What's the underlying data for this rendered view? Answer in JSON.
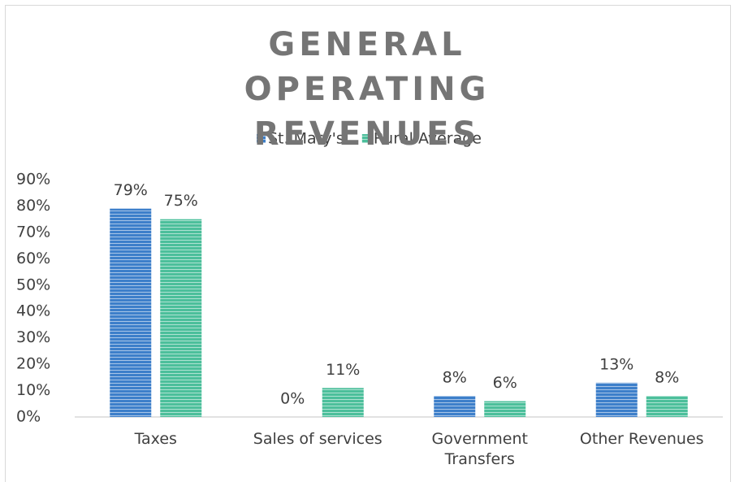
{
  "chart_data": {
    "type": "bar",
    "title": "GENERAL OPERATING REVENUES",
    "categories": [
      "Taxes",
      "Sales of services",
      "Government Transfers",
      "Other Revenues"
    ],
    "series": [
      {
        "name": "St. Mary's",
        "color": "#3d7fca",
        "values": [
          79,
          0,
          8,
          13
        ],
        "value_labels": [
          "79%",
          "0%",
          "8%",
          "13%"
        ]
      },
      {
        "name": "Rural Average",
        "color": "#4cbf9b",
        "values": [
          75,
          11,
          6,
          8
        ],
        "value_labels": [
          "75%",
          "11%",
          "6%",
          "8%"
        ]
      }
    ],
    "ylim": [
      0,
      90
    ],
    "yticks": [
      {
        "value": 0,
        "label": "0%"
      },
      {
        "value": 10,
        "label": "10%"
      },
      {
        "value": 20,
        "label": "20%"
      },
      {
        "value": 30,
        "label": "30%"
      },
      {
        "value": 40,
        "label": "40%"
      },
      {
        "value": 50,
        "label": "50%"
      },
      {
        "value": 60,
        "label": "60%"
      },
      {
        "value": 70,
        "label": "70%"
      },
      {
        "value": 80,
        "label": "80%"
      },
      {
        "value": 90,
        "label": "90%"
      }
    ],
    "legend": "top",
    "grid": false
  }
}
